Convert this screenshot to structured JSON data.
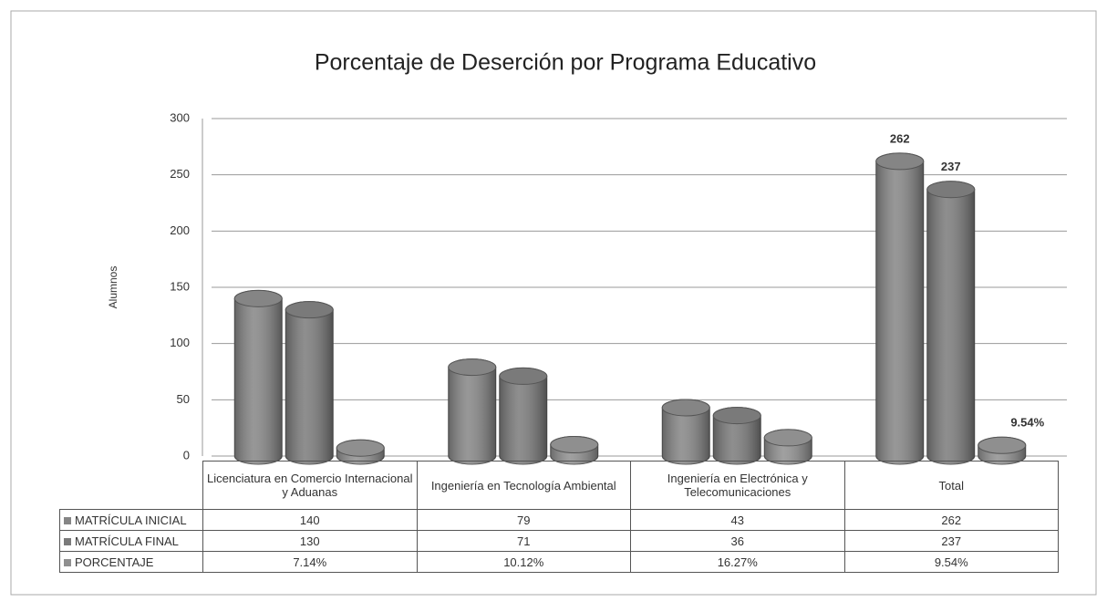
{
  "chart_data": {
    "type": "bar3d",
    "title": "Porcentaje de Deserción por Programa Educativo",
    "ylabel": "Alumnos",
    "categories": [
      "Licenciatura en Comercio Internacional y Aduanas",
      "Ingeniería en Tecnología Ambiental",
      "Ingeniería en Electrónica y Telecomunicaciones",
      "Total"
    ],
    "series": [
      {
        "name": "MATRÍCULA INICIAL",
        "color": "#858585",
        "values": [
          140,
          79,
          43,
          262
        ]
      },
      {
        "name": "MATRÍCULA FINAL",
        "color": "#7a7a7a",
        "values": [
          130,
          71,
          36,
          237
        ]
      },
      {
        "name": "PORCENTAJE",
        "color": "#8f8f8f",
        "values": [
          7.14,
          10.12,
          16.27,
          9.54
        ],
        "value_labels": [
          "7.14%",
          "10.12%",
          "16.27%",
          "9.54%"
        ]
      }
    ],
    "ylim": [
      0,
      300
    ],
    "yticks": [
      0,
      50,
      100,
      150,
      200,
      250,
      300
    ],
    "grid": true
  }
}
